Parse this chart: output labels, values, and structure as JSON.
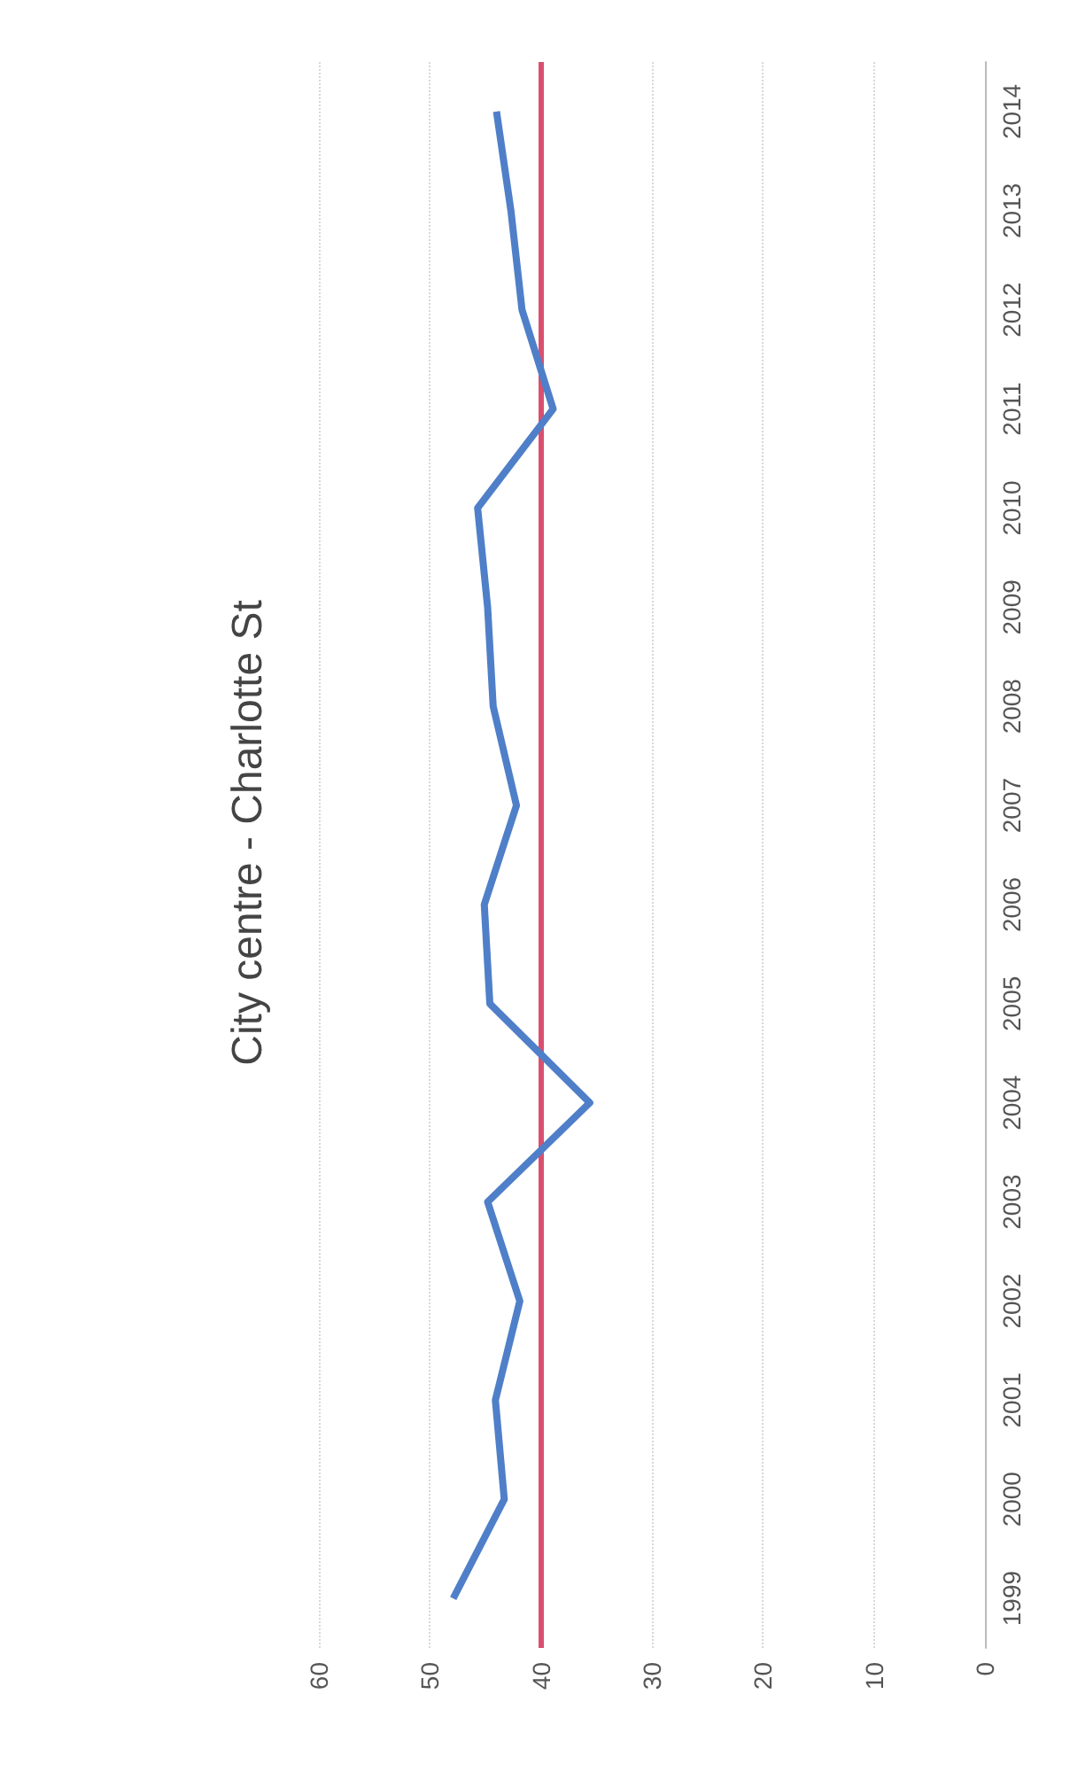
{
  "chart_data": {
    "type": "line",
    "title": "City centre - Charlotte St",
    "orientation": "horizontal",
    "categories": [
      "2014",
      "2013",
      "2012",
      "2011",
      "2010",
      "2009",
      "2008",
      "2007",
      "2006",
      "2005",
      "2004",
      "2003",
      "2002",
      "2001",
      "2000",
      "1999"
    ],
    "series": [
      {
        "color": "#4f7fc8",
        "values": [
          44.0,
          42.7,
          41.7,
          38.9,
          45.7,
          44.8,
          44.3,
          42.2,
          45.1,
          44.6,
          35.6,
          44.8,
          41.9,
          44.1,
          43.3,
          47.9
        ]
      }
    ],
    "xlim": [
      60,
      0
    ],
    "xticks": [
      60,
      50,
      40,
      30,
      20,
      10,
      0
    ],
    "grid": "x",
    "marker": "none",
    "line_style": "solid",
    "ref_lines": [
      {
        "axis": "x",
        "value": 40,
        "label": null,
        "color": "#d9506e"
      }
    ]
  }
}
